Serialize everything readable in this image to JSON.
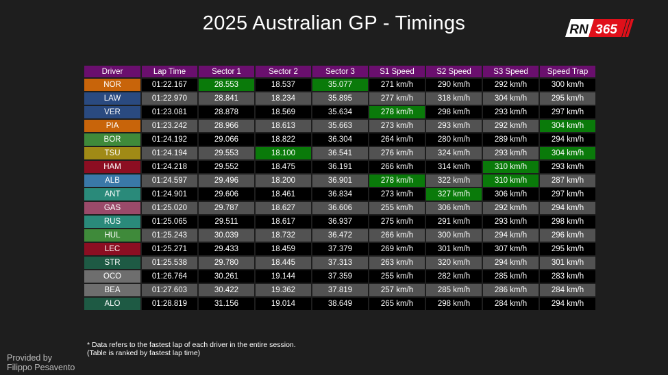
{
  "title": "2025 Australian GP - Timings",
  "logo": {
    "text_left": "RN",
    "text_right": "365"
  },
  "footnote": {
    "line1": "* Data refers to the fastest lap of each driver in the entire session.",
    "line2": "(Table is ranked by fastest lap time)"
  },
  "credit": {
    "line1": "Provided by",
    "line2": "Filippo Pesavento"
  },
  "colors": {
    "header": "#6a0f6e",
    "best": "#0a7a0a",
    "row_dark": "#000000",
    "row_light": "#525252"
  },
  "chart_data": {
    "type": "table",
    "columns": [
      "Driver",
      "Lap Time",
      "Sector 1",
      "Sector 2",
      "Sector 3",
      "S1 Speed",
      "S2 Speed",
      "S3 Speed",
      "Speed Trap"
    ],
    "rows": [
      {
        "driver": "NOR",
        "team_color": "#c8640a",
        "cells": [
          "01:22.167",
          "28.553",
          "18.537",
          "35.077",
          "271 km/h",
          "290 km/h",
          "292 km/h",
          "300 km/h"
        ],
        "best": [
          1,
          3
        ]
      },
      {
        "driver": "LAW",
        "team_color": "#2a4a80",
        "cells": [
          "01:22.970",
          "28.841",
          "18.234",
          "35.895",
          "277 km/h",
          "318 km/h",
          "304 km/h",
          "295 km/h"
        ],
        "best": []
      },
      {
        "driver": "VER",
        "team_color": "#2a4a80",
        "cells": [
          "01:23.081",
          "28.878",
          "18.569",
          "35.634",
          "278 km/h",
          "298 km/h",
          "293 km/h",
          "297 km/h"
        ],
        "best": [
          4
        ]
      },
      {
        "driver": "PIA",
        "team_color": "#c8640a",
        "cells": [
          "01:23.242",
          "28.966",
          "18.613",
          "35.663",
          "273 km/h",
          "293 km/h",
          "292 km/h",
          "304 km/h"
        ],
        "best": [
          7
        ]
      },
      {
        "driver": "BOR",
        "team_color": "#3f8a3a",
        "cells": [
          "01:24.192",
          "29.066",
          "18.822",
          "36.304",
          "264 km/h",
          "280 km/h",
          "289 km/h",
          "294 km/h"
        ],
        "best": []
      },
      {
        "driver": "TSU",
        "team_color": "#a08a16",
        "cells": [
          "01:24.194",
          "29.553",
          "18.100",
          "36.541",
          "276 km/h",
          "324 km/h",
          "293 km/h",
          "304 km/h"
        ],
        "best": [
          2,
          7
        ]
      },
      {
        "driver": "HAM",
        "team_color": "#8c0e22",
        "cells": [
          "01:24.218",
          "29.552",
          "18.475",
          "36.191",
          "266 km/h",
          "314 km/h",
          "310 km/h",
          "293 km/h"
        ],
        "best": [
          6
        ]
      },
      {
        "driver": "ALB",
        "team_color": "#3a78a8",
        "cells": [
          "01:24.597",
          "29.496",
          "18.200",
          "36.901",
          "278 km/h",
          "322 km/h",
          "310 km/h",
          "287 km/h"
        ],
        "best": [
          4,
          6
        ]
      },
      {
        "driver": "ANT",
        "team_color": "#2a8a7a",
        "cells": [
          "01:24.901",
          "29.606",
          "18.461",
          "36.834",
          "273 km/h",
          "327 km/h",
          "306 km/h",
          "297 km/h"
        ],
        "best": [
          5
        ]
      },
      {
        "driver": "GAS",
        "team_color": "#9a4a6a",
        "cells": [
          "01:25.020",
          "29.787",
          "18.627",
          "36.606",
          "255 km/h",
          "306 km/h",
          "292 km/h",
          "294 km/h"
        ],
        "best": []
      },
      {
        "driver": "RUS",
        "team_color": "#2a8a7a",
        "cells": [
          "01:25.065",
          "29.511",
          "18.617",
          "36.937",
          "275 km/h",
          "291 km/h",
          "293 km/h",
          "298 km/h"
        ],
        "best": []
      },
      {
        "driver": "HUL",
        "team_color": "#3f8a3a",
        "cells": [
          "01:25.243",
          "30.039",
          "18.732",
          "36.472",
          "266 km/h",
          "300 km/h",
          "294 km/h",
          "296 km/h"
        ],
        "best": []
      },
      {
        "driver": "LEC",
        "team_color": "#8c0e22",
        "cells": [
          "01:25.271",
          "29.433",
          "18.459",
          "37.379",
          "269 km/h",
          "301 km/h",
          "307 km/h",
          "295 km/h"
        ],
        "best": []
      },
      {
        "driver": "STR",
        "team_color": "#1e5a44",
        "cells": [
          "01:25.538",
          "29.780",
          "18.445",
          "37.313",
          "263 km/h",
          "320 km/h",
          "294 km/h",
          "301 km/h"
        ],
        "best": []
      },
      {
        "driver": "OCO",
        "team_color": "#6e6e6e",
        "cells": [
          "01:26.764",
          "30.261",
          "19.144",
          "37.359",
          "255 km/h",
          "282 km/h",
          "285 km/h",
          "283 km/h"
        ],
        "best": []
      },
      {
        "driver": "BEA",
        "team_color": "#6e6e6e",
        "cells": [
          "01:27.603",
          "30.422",
          "19.362",
          "37.819",
          "257 km/h",
          "285 km/h",
          "286 km/h",
          "284 km/h"
        ],
        "best": []
      },
      {
        "driver": "ALO",
        "team_color": "#1e5a44",
        "cells": [
          "01:28.819",
          "31.156",
          "19.014",
          "38.649",
          "265 km/h",
          "298 km/h",
          "284 km/h",
          "294 km/h"
        ],
        "best": []
      }
    ]
  }
}
